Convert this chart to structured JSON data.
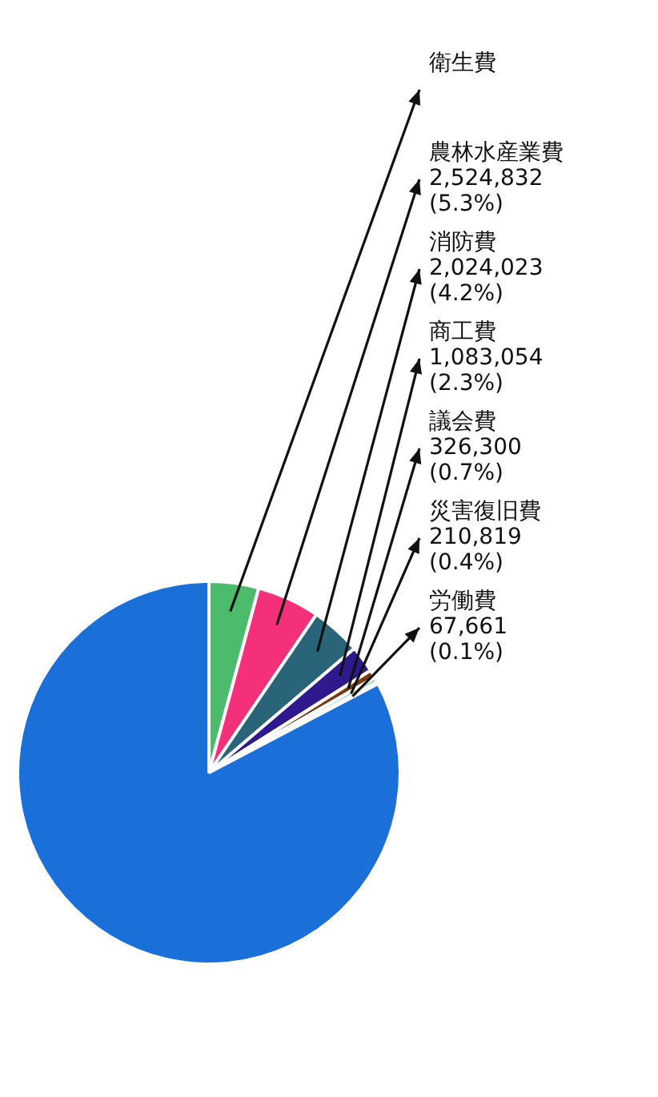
{
  "chart_data": {
    "type": "pie",
    "categories": [
      "衛生費",
      "農林水産業費",
      "消防費",
      "商工費",
      "議会費",
      "災害復旧費",
      "労働費",
      null
    ],
    "values": [
      2000000,
      2524832,
      2024023,
      1083054,
      326300,
      210819,
      67661,
      39400000
    ],
    "value_labels": [
      null,
      "2,524,832 (5.3%)",
      "2,024,023 (4.2%)",
      "1,083,054 (2.3%)",
      "326,300 (0.7%)",
      "210,819 (0.4%)",
      "67,661 (0.1%)",
      null
    ],
    "colors": [
      "#4cbb6c",
      "#f5307a",
      "#2a6478",
      "#2e1a8c",
      "#7a3b12",
      "#a8d8b0",
      "#8a9a9a",
      "#1a6fd8"
    ],
    "legend": false
  }
}
